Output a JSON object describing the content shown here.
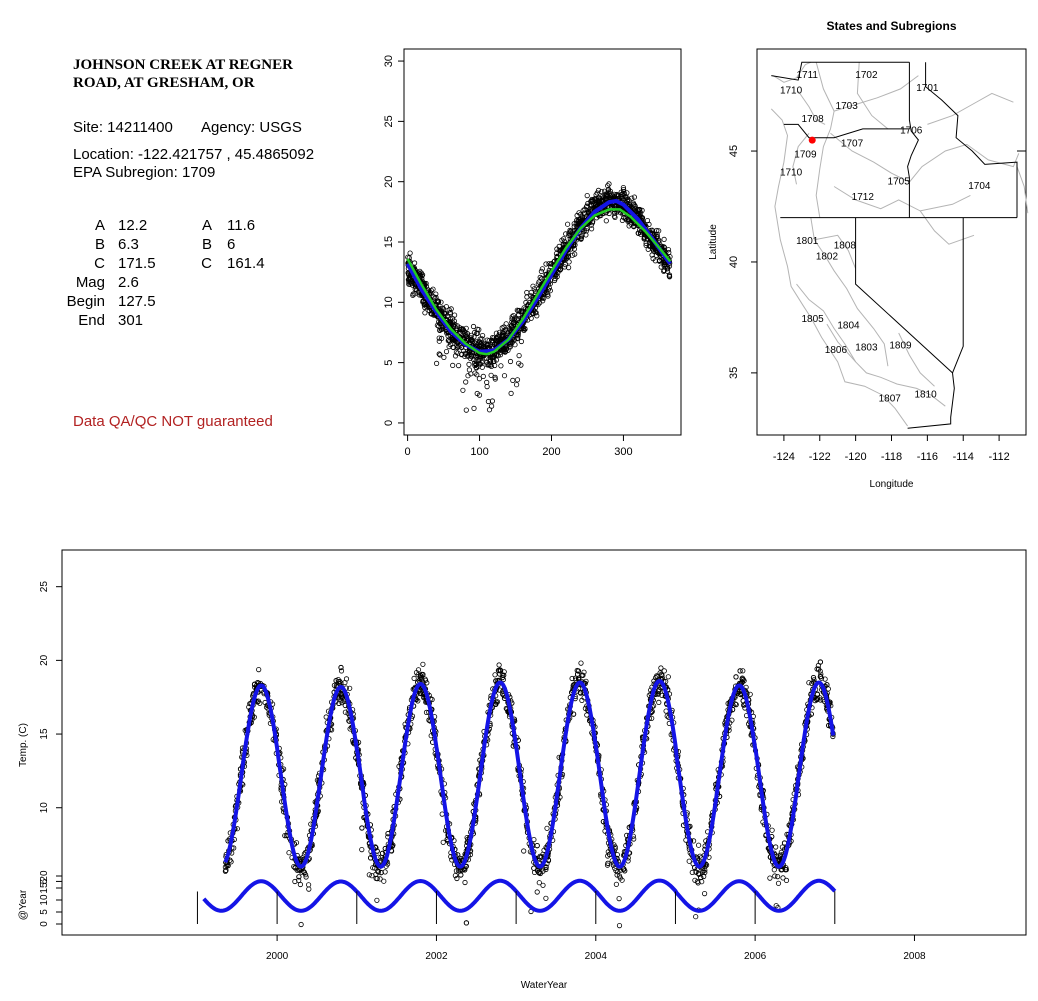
{
  "station": {
    "title_line1": "JOHNSON CREEK AT REGNER",
    "title_line2": "ROAD, AT GRESHAM, OR",
    "site_text": "Site: 14211400",
    "agency_text": "Agency: USGS",
    "location_text": "Location: -122.421757 , 45.4865092",
    "subregion_text": "EPA Subregion: 1709",
    "qa_note": "Data QA/QC NOT guaranteed"
  },
  "params": {
    "left": [
      {
        "label": "A",
        "value": "12.2"
      },
      {
        "label": "B",
        "value": "6.3"
      },
      {
        "label": "C",
        "value": "171.5"
      },
      {
        "label": "Mag",
        "value": "2.6"
      },
      {
        "label": "Begin",
        "value": "127.5"
      },
      {
        "label": "End",
        "value": "301"
      }
    ],
    "right": [
      {
        "label": "A",
        "value": "11.6"
      },
      {
        "label": "B",
        "value": "6"
      },
      {
        "label": "C",
        "value": "161.4"
      }
    ]
  },
  "colors": {
    "points": "#000000",
    "fit_blue": "#1414e6",
    "fit_green": "#22cc22",
    "site_dot": "#ff0000",
    "qa": "#b22222",
    "boundary_gray": "#b4b4b4"
  },
  "chart_data": [
    {
      "id": "doy_scatter",
      "type": "scatter",
      "title": "",
      "xlabel": "",
      "ylabel": "",
      "xlim": [
        -5,
        380
      ],
      "ylim": [
        -1,
        31
      ],
      "xticks": [
        0,
        100,
        200,
        300
      ],
      "yticks": [
        0,
        5,
        10,
        15,
        20,
        25,
        30
      ],
      "series": [
        {
          "style": "points",
          "x": [
            0,
            10,
            20,
            30,
            40,
            50,
            60,
            70,
            80,
            90,
            100,
            110,
            120,
            130,
            140,
            150,
            160,
            170,
            180,
            190,
            200,
            210,
            220,
            230,
            240,
            250,
            260,
            270,
            280,
            290,
            300,
            310,
            320,
            330,
            340,
            350,
            360,
            365
          ],
          "y": [
            13.0,
            12.0,
            11.0,
            10.2,
            9.4,
            8.6,
            7.9,
            7.2,
            6.7,
            6.2,
            5.9,
            5.8,
            6.0,
            6.5,
            7.1,
            7.8,
            8.6,
            9.5,
            10.4,
            11.4,
            12.4,
            13.4,
            14.4,
            15.4,
            16.3,
            17.1,
            17.8,
            18.2,
            18.4,
            18.3,
            18.0,
            17.5,
            16.8,
            16.0,
            15.2,
            14.3,
            13.5,
            13.2
          ]
        },
        {
          "style": "line",
          "color": "#1414e6",
          "x": [
            0,
            20,
            40,
            60,
            80,
            100,
            120,
            140,
            160,
            180,
            200,
            220,
            240,
            260,
            280,
            290,
            300,
            320,
            340,
            360,
            365
          ],
          "y": [
            13.2,
            11.0,
            9.2,
            7.6,
            6.5,
            5.9,
            6.0,
            6.9,
            8.4,
            10.3,
            12.3,
            14.3,
            16.1,
            17.5,
            18.3,
            18.4,
            18.1,
            16.9,
            15.3,
            13.6,
            13.2
          ]
        },
        {
          "style": "line",
          "color": "#22cc22",
          "x": [
            0,
            20,
            40,
            60,
            80,
            100,
            110,
            120,
            140,
            160,
            180,
            200,
            220,
            240,
            260,
            280,
            295,
            310,
            330,
            350,
            365
          ],
          "y": [
            13.6,
            11.4,
            9.4,
            7.8,
            6.6,
            5.8,
            5.7,
            5.9,
            6.9,
            8.6,
            10.6,
            12.6,
            14.5,
            16.1,
            17.2,
            17.7,
            17.7,
            17.1,
            15.9,
            14.5,
            13.4
          ]
        }
      ]
    },
    {
      "id": "subregion_map",
      "type": "map",
      "title": "States and Subregions",
      "xlabel": "Longitude",
      "ylabel": "Latitude",
      "xlim": [
        -125.5,
        -110.5
      ],
      "ylim": [
        32.2,
        49.6
      ],
      "xticks": [
        -124,
        -122,
        -120,
        -118,
        -116,
        -114,
        -112
      ],
      "yticks": [
        35,
        40,
        45
      ],
      "site": {
        "lon": -122.42,
        "lat": 45.49
      },
      "region_labels": [
        {
          "text": "1711",
          "lon": -122.7,
          "lat": 48.3
        },
        {
          "text": "1710",
          "lon": -123.6,
          "lat": 47.6
        },
        {
          "text": "1702",
          "lon": -119.4,
          "lat": 48.3
        },
        {
          "text": "1701",
          "lon": -116.0,
          "lat": 47.7
        },
        {
          "text": "1703",
          "lon": -120.5,
          "lat": 46.9
        },
        {
          "text": "1708",
          "lon": -122.4,
          "lat": 46.3
        },
        {
          "text": "1706",
          "lon": -116.9,
          "lat": 45.8
        },
        {
          "text": "1707",
          "lon": -120.2,
          "lat": 45.2
        },
        {
          "text": "1709",
          "lon": -122.8,
          "lat": 44.7
        },
        {
          "text": "1710",
          "lon": -123.6,
          "lat": 43.9
        },
        {
          "text": "1705",
          "lon": -117.6,
          "lat": 43.5
        },
        {
          "text": "1704",
          "lon": -113.1,
          "lat": 43.3
        },
        {
          "text": "1712",
          "lon": -119.6,
          "lat": 42.8
        },
        {
          "text": "1801",
          "lon": -122.7,
          "lat": 40.8
        },
        {
          "text": "1808",
          "lon": -120.6,
          "lat": 40.6
        },
        {
          "text": "1802",
          "lon": -121.6,
          "lat": 40.1
        },
        {
          "text": "1805",
          "lon": -122.4,
          "lat": 37.3
        },
        {
          "text": "1804",
          "lon": -120.4,
          "lat": 37.0
        },
        {
          "text": "1806",
          "lon": -121.1,
          "lat": 35.9
        },
        {
          "text": "1803",
          "lon": -119.4,
          "lat": 36.0
        },
        {
          "text": "1809",
          "lon": -117.5,
          "lat": 36.1
        },
        {
          "text": "1807",
          "lon": -118.1,
          "lat": 33.7
        },
        {
          "text": "1810",
          "lon": -116.1,
          "lat": 33.9
        }
      ]
    },
    {
      "id": "timeseries",
      "type": "scatter",
      "title": "",
      "xlabel": "WaterYear",
      "ylabel": "Temp. (C)",
      "ylabel2": "@Year",
      "xlim": [
        1997.3,
        2009.4
      ],
      "ylim": [
        1.5,
        30
      ],
      "xticks": [
        2000,
        2002,
        2004,
        2006,
        2008
      ],
      "yticks": [
        5,
        10,
        15,
        20,
        25
      ],
      "y2ticks": [
        0,
        5,
        10,
        15,
        20
      ],
      "series": [
        {
          "style": "fit",
          "start": 1999.35,
          "end": 2006.98,
          "peaks": [
            18.3,
            18.2,
            18.4,
            18.5,
            18.5,
            18.6,
            18.3,
            18.5
          ],
          "troughs": [
            6.0,
            6.0,
            6.0,
            6.0,
            6.0,
            6.0,
            6.0
          ]
        },
        {
          "style": "year_markers",
          "x": [
            1999.0,
            2000.0,
            2001.0,
            2002.0,
            2003.0,
            2004.0,
            2005.0,
            2006.0,
            2007.0
          ]
        }
      ]
    }
  ]
}
